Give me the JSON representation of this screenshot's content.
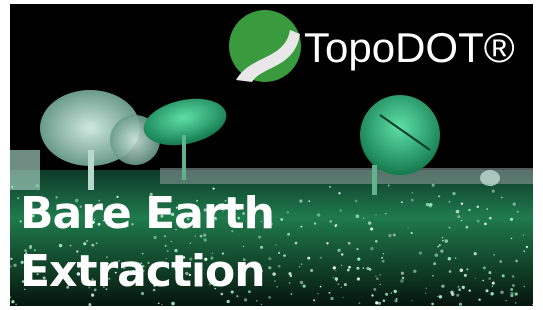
{
  "logo": {
    "text": "TopoDOT®"
  },
  "title": {
    "lines": [
      "Bare Earth",
      "Extraction"
    ]
  }
}
